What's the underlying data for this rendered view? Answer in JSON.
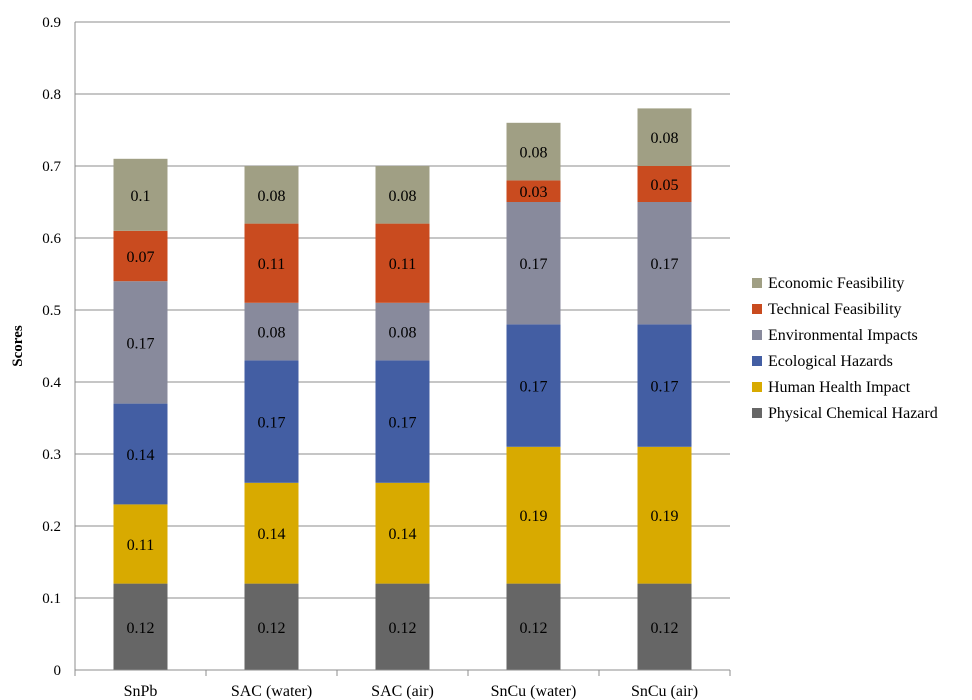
{
  "chart_data": {
    "type": "bar",
    "stacked": true,
    "categories": [
      "SnPb",
      "SAC (water)",
      "SAC (air)",
      "SnCu (water)",
      "SnCu (air)"
    ],
    "series": [
      {
        "name": "Physical Chemical Hazard",
        "color": "#666666",
        "values": [
          0.12,
          0.12,
          0.12,
          0.12,
          0.12
        ]
      },
      {
        "name": "Human Health Impact",
        "color": "#d8aa00",
        "values": [
          0.11,
          0.14,
          0.14,
          0.19,
          0.19
        ]
      },
      {
        "name": "Ecological Hazards",
        "color": "#435ea3",
        "values": [
          0.14,
          0.17,
          0.17,
          0.17,
          0.17
        ]
      },
      {
        "name": "Environmental Impacts",
        "color": "#888a9c",
        "values": [
          0.17,
          0.08,
          0.08,
          0.17,
          0.17
        ]
      },
      {
        "name": "Technical Feasibility",
        "color": "#c94b1f",
        "values": [
          0.07,
          0.11,
          0.11,
          0.03,
          0.05
        ]
      },
      {
        "name": "Economic Feasibility",
        "color": "#a09f84",
        "values": [
          0.1,
          0.08,
          0.08,
          0.08,
          0.08
        ]
      }
    ],
    "data_labels": [
      [
        "0.12",
        "0.11",
        "0.14",
        "0.17",
        "0.07",
        "0.1"
      ],
      [
        "0.12",
        "0.14",
        "0.17",
        "0.08",
        "0.11",
        "0.08"
      ],
      [
        "0.12",
        "0.14",
        "0.17",
        "0.08",
        "0.11",
        "0.08"
      ],
      [
        "0.12",
        "0.19",
        "0.17",
        "0.17",
        "0.03",
        "0.08"
      ],
      [
        "0.12",
        "0.19",
        "0.17",
        "0.17",
        "0.05",
        "0.08"
      ]
    ],
    "ylabel": "Scores",
    "xlabel": "",
    "ylim": [
      0,
      0.9
    ],
    "yticks": [
      "0",
      "0.1",
      "0.2",
      "0.3",
      "0.4",
      "0.5",
      "0.6",
      "0.7",
      "0.8",
      "0.9"
    ],
    "grid": true,
    "legend_position": "right",
    "legend_order": [
      "Economic Feasibility",
      "Technical Feasibility",
      "Environmental Impacts",
      "Ecological Hazards",
      "Human Health Impact",
      "Physical Chemical Hazard"
    ]
  }
}
